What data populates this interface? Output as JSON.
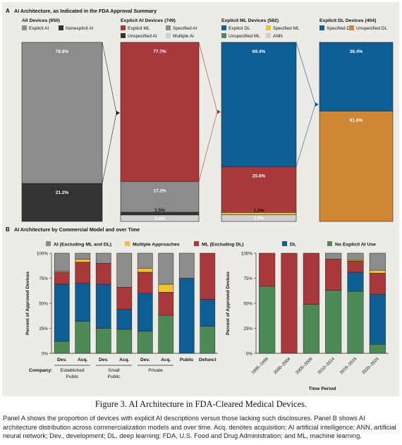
{
  "colors": {
    "gray": "#8c8c8c",
    "dark": "#333333",
    "red": "#a8383b",
    "blue": "#0e5e96",
    "yellow": "#f2c230",
    "lightgray": "#cfcfcf",
    "orange": "#d08736",
    "green": "#4e8a58"
  },
  "panelA": {
    "letter": "A",
    "title": "AI Architecture, as Indicated in the FDA Approval Summary"
  },
  "panelB": {
    "letter": "B",
    "title": "AI Architecture by Commercial Model and over Time",
    "legend": [
      {
        "label": "AI (Excluding ML and DL)",
        "color": "gray"
      },
      {
        "label": "Multiple Approaches",
        "color": "yellow"
      },
      {
        "label": "ML (Excluding DL)",
        "color": "red"
      },
      {
        "label": "DL",
        "color": "blue"
      },
      {
        "label": "No Explicit AI Use",
        "color": "green"
      }
    ],
    "company_label": "Company:",
    "time_xlabel": "Time Period"
  },
  "chart_data": [
    {
      "type": "bar",
      "title": "All Devices (950)",
      "legend": [
        {
          "label": "Explicit AI",
          "color": "gray"
        },
        {
          "label": "Nonexplicit AI",
          "color": "dark"
        }
      ],
      "segments": [
        {
          "name": "Explicit AI",
          "value": 78.8,
          "label": "78.8%",
          "color": "gray"
        },
        {
          "name": "Nonexplicit AI",
          "value": 21.2,
          "label": "21.2%",
          "color": "dark"
        }
      ]
    },
    {
      "type": "bar",
      "title": "Explicit AI Devices (749)",
      "legend": [
        {
          "label": "Explicit ML",
          "color": "red"
        },
        {
          "label": "Specified AI",
          "color": "gray"
        },
        {
          "label": "Unspecified AI",
          "color": "dark"
        },
        {
          "label": "Multiple AI",
          "color": "lightgray"
        }
      ],
      "segments": [
        {
          "name": "Explicit ML",
          "value": 77.7,
          "label": "77.7%",
          "color": "red"
        },
        {
          "name": "Specified AI",
          "value": 17.2,
          "label": "17.2%",
          "color": "gray"
        },
        {
          "name": "Unspecified AI",
          "value": 1.5,
          "label": "1.5%",
          "color": "dark"
        },
        {
          "name": "Multiple AI",
          "value": 3.6,
          "label": "3.6%",
          "color": "lightgray"
        }
      ]
    },
    {
      "type": "bar",
      "title": "Explicit ML Devices (582)",
      "legend": [
        {
          "label": "Explicit DL",
          "color": "blue"
        },
        {
          "label": "Specified ML",
          "color": "yellow"
        },
        {
          "label": "Unspecified ML",
          "color": "green"
        },
        {
          "label": "ANN",
          "color": "lightgray"
        }
      ],
      "segments": [
        {
          "name": "Explicit DL",
          "value": 69.4,
          "label": "69.4%",
          "color": "blue"
        },
        {
          "name": "Specified ML",
          "value": 25.6,
          "label": "25.6%",
          "color": "red"
        },
        {
          "name": "Unspecified ML",
          "value": 1.2,
          "label": "1.2%",
          "color": "yellow"
        },
        {
          "name": "ANN",
          "value": 3.8,
          "label": "3.8%",
          "color": "lightgray"
        }
      ]
    },
    {
      "type": "bar",
      "title": "Explicit DL Devices (404)",
      "legend": [
        {
          "label": "Specified DL",
          "color": "blue"
        },
        {
          "label": "Unspecified DL",
          "color": "orange"
        }
      ],
      "segments": [
        {
          "name": "Specified DL",
          "value": 38.4,
          "label": "38.4%",
          "color": "blue"
        },
        {
          "name": "Unspecified DL",
          "value": 61.6,
          "label": "61.6%",
          "color": "orange"
        }
      ]
    },
    {
      "type": "bar",
      "stacked": true,
      "ylabel": "Percent of Approved Devices",
      "ylim": [
        0,
        100
      ],
      "yticks": [
        "0%",
        "25%",
        "50%",
        "75%",
        "100%"
      ],
      "categories": [
        "Dev.",
        "Acq.",
        "Dev.",
        "Acq.",
        "Dev.",
        "Acq.",
        "Public",
        "Defunct"
      ],
      "groups": [
        {
          "label": "Established Public",
          "lines": [
            "Established",
            "Public"
          ],
          "span": [
            0,
            1
          ]
        },
        {
          "label": "Small Public",
          "lines": [
            "Small",
            "Public"
          ],
          "span": [
            2,
            3
          ]
        },
        {
          "label": "Private",
          "lines": [
            "Private"
          ],
          "span": [
            4,
            5
          ]
        }
      ],
      "series": [
        {
          "name": "No Explicit AI Use",
          "color": "green",
          "values": [
            12,
            32,
            25,
            24,
            22,
            38,
            0,
            27
          ]
        },
        {
          "name": "DL",
          "color": "blue",
          "values": [
            57,
            38,
            44,
            20,
            38,
            0,
            75,
            27
          ]
        },
        {
          "name": "ML (Excluding DL)",
          "color": "red",
          "values": [
            12,
            21,
            21,
            22,
            21,
            23,
            0,
            46
          ]
        },
        {
          "name": "Multiple Approaches",
          "color": "yellow",
          "values": [
            1,
            3,
            0,
            0,
            4,
            8,
            0,
            0
          ]
        },
        {
          "name": "AI (Excluding ML and DL)",
          "color": "gray",
          "values": [
            18,
            6,
            10,
            34,
            15,
            31,
            25,
            0
          ]
        }
      ]
    },
    {
      "type": "bar",
      "stacked": true,
      "ylabel": "Percent of Approved Devices",
      "xlabel": "Time Period",
      "ylim": [
        0,
        100
      ],
      "yticks": [
        "0%",
        "25%",
        "50%",
        "75%",
        "100%"
      ],
      "categories": [
        "1995–1999",
        "2000–2004",
        "2005–2009",
        "2010–2014",
        "2015–2019",
        "2020–2024"
      ],
      "series": [
        {
          "name": "No Explicit AI Use",
          "color": "green",
          "values": [
            67,
            0,
            49,
            63,
            62,
            9
          ]
        },
        {
          "name": "DL",
          "color": "blue",
          "values": [
            0,
            0,
            0,
            0,
            19,
            50
          ]
        },
        {
          "name": "ML (Excluding DL)",
          "color": "red",
          "values": [
            33,
            100,
            51,
            31,
            11,
            21
          ]
        },
        {
          "name": "Multiple Approaches",
          "color": "yellow",
          "values": [
            0,
            0,
            0,
            0,
            1,
            3
          ]
        },
        {
          "name": "AI (Excluding ML and DL)",
          "color": "gray",
          "values": [
            0,
            0,
            0,
            6,
            7,
            17
          ]
        }
      ]
    }
  ],
  "caption": {
    "title": "Figure 3. AI Architecture in FDA-Cleared Medical Devices.",
    "text": "Panel A shows the proportion of devices with explicit AI descriptions versus those lacking such disclosures. Panel B shows AI architecture distribution across commercialization models and over time. Acq. denotes acquisition; AI artificial intelligence; ANN, artificial neural network; Dev., development; DL, deep learning; FDA, U.S. Food and Drug Administration; and ML, machine learning."
  }
}
